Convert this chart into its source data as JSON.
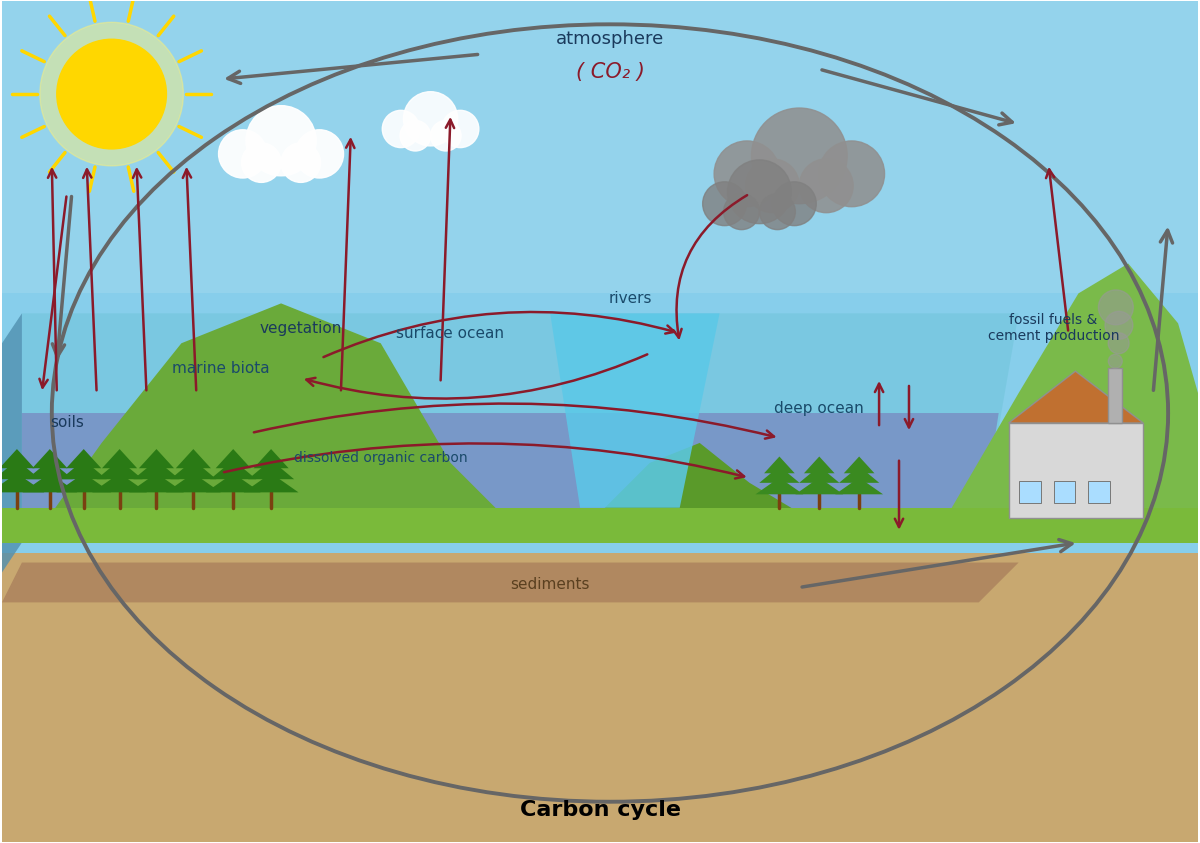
{
  "title": "Carbon cycle",
  "title_fontsize": 16,
  "title_fontweight": "bold",
  "bg_color": "#ffffff",
  "sky_color": "#87CEEB",
  "ground_color": "#c8a96e",
  "ocean_color_surface": "#6ab8d8",
  "ocean_color_deep": "#7080b8",
  "labels": {
    "atmosphere": "atmosphere",
    "co2": "( CO₂ )",
    "vegetation": "vegetation",
    "soils": "soils",
    "rivers": "rivers",
    "surface_ocean": "surface ocean",
    "marine_biota": "marine biota",
    "dissolved_organic": "dissolved organic carbon",
    "deep_ocean": "deep ocean",
    "sediments": "sediments",
    "fossil_fuels": "fossil fuels &\ncement production"
  },
  "label_color_dark": "#1a3a5c",
  "label_color_dark2": "#1a4a6a",
  "label_color_sediments": "#5a4020",
  "arrow_color_dark": "#666666",
  "arrow_color_red": "#8b1a2a",
  "co2_color": "#8b1a2a",
  "sun_color": "#FFD700",
  "sun_glow": "#FFF176",
  "ellipse_color": "#666666"
}
